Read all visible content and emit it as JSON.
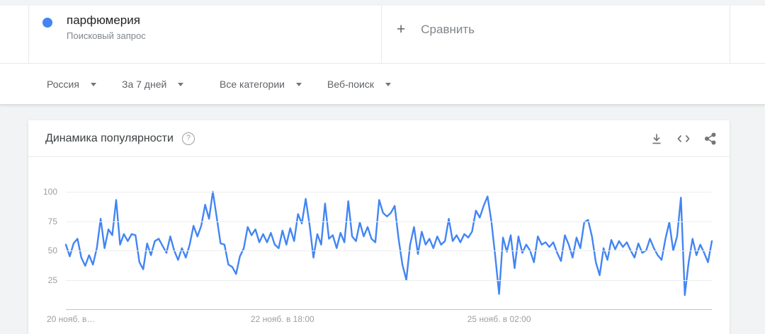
{
  "query_card": {
    "term": "парфюмерия",
    "type_label": "Поисковый запрос",
    "dot_color": "#4285f4"
  },
  "compare": {
    "plus_glyph": "+",
    "label": "Сравнить"
  },
  "filters": [
    {
      "label": "Россия"
    },
    {
      "label": "За 7 дней"
    },
    {
      "label": "Все категории"
    },
    {
      "label": "Веб-поиск"
    }
  ],
  "chart_card": {
    "title": "Динамика популярности",
    "help_glyph": "?",
    "toolbar_icons": [
      "download-icon",
      "embed-icon",
      "share-icon"
    ]
  },
  "chart_data": {
    "type": "line",
    "title": "Динамика популярности",
    "xlabel": "",
    "ylabel": "",
    "ylim": [
      0,
      100
    ],
    "grid": "horizontal",
    "legend_position": "none",
    "y_ticks": [
      25,
      50,
      75,
      100
    ],
    "x_ticks": [
      {
        "hour": 0,
        "label": "20 нояб. в…",
        "align": "left"
      },
      {
        "hour": 56,
        "label": "22 нояб. в 18:00",
        "align": "center"
      },
      {
        "hour": 112,
        "label": "25 нояб. в 02:00",
        "align": "center"
      }
    ],
    "x_range_hours": 168,
    "series": [
      {
        "name": "парфюмерия",
        "color": "#4285f4",
        "values": [
          55,
          45,
          56,
          60,
          44,
          37,
          46,
          38,
          52,
          77,
          52,
          68,
          63,
          93,
          55,
          64,
          58,
          64,
          63,
          40,
          34,
          56,
          46,
          58,
          60,
          54,
          48,
          62,
          50,
          42,
          52,
          44,
          55,
          71,
          62,
          71,
          89,
          77,
          100,
          78,
          56,
          55,
          38,
          36,
          30,
          45,
          52,
          70,
          63,
          68,
          57,
          64,
          57,
          65,
          55,
          52,
          67,
          55,
          69,
          58,
          81,
          73,
          94,
          72,
          44,
          64,
          55,
          90,
          60,
          63,
          52,
          65,
          57,
          92,
          62,
          58,
          74,
          62,
          70,
          60,
          57,
          93,
          82,
          79,
          82,
          88,
          60,
          38,
          25,
          55,
          70,
          47,
          66,
          55,
          60,
          52,
          62,
          55,
          58,
          77,
          58,
          63,
          57,
          64,
          61,
          66,
          84,
          78,
          88,
          96,
          75,
          45,
          13,
          61,
          49,
          63,
          35,
          62,
          48,
          55,
          50,
          40,
          62,
          55,
          57,
          53,
          57,
          48,
          41,
          63,
          55,
          44,
          61,
          52,
          74,
          76,
          62,
          40,
          29,
          52,
          42,
          59,
          51,
          58,
          53,
          57,
          50,
          44,
          56,
          48,
          50,
          60,
          52,
          46,
          42,
          60,
          74,
          50,
          62,
          95,
          12,
          40,
          60,
          46,
          55,
          48,
          40,
          58
        ]
      }
    ]
  }
}
